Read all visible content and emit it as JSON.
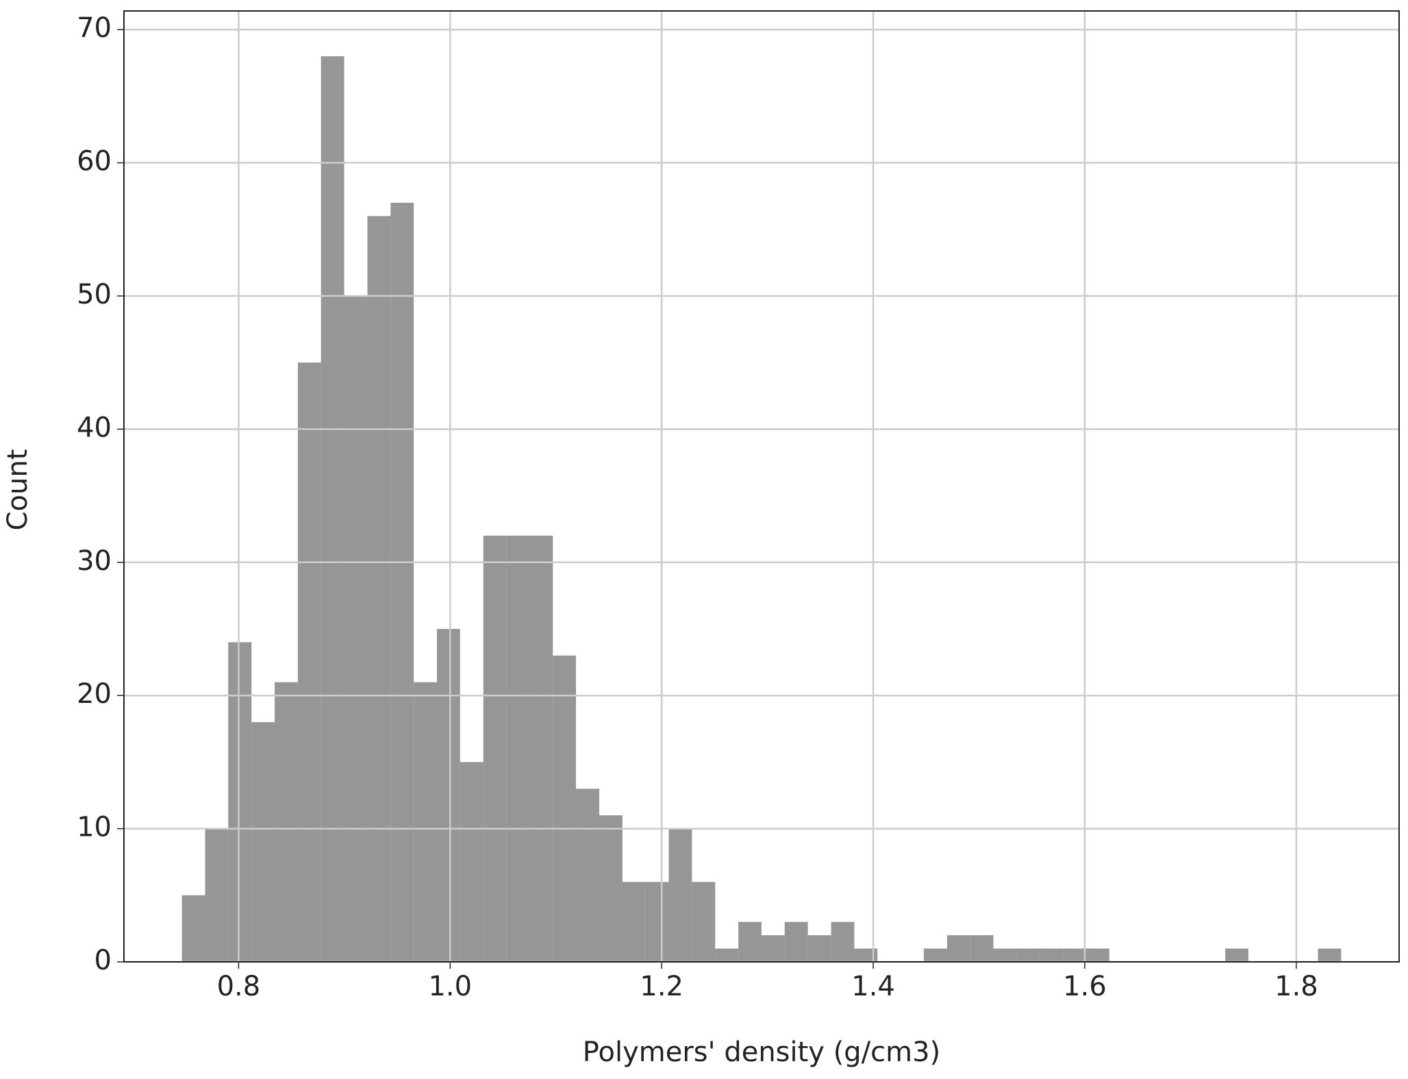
{
  "chart_data": {
    "type": "histogram",
    "x_label": "Polymers' density (g/cm3)",
    "y_label": "Count",
    "color": "#969696",
    "grid": true,
    "bins": [
      0.7464,
      0.7683,
      0.7902,
      0.8122,
      0.8341,
      0.856,
      0.8779,
      0.8998,
      0.9218,
      0.9437,
      0.9656,
      0.9875,
      1.0094,
      1.0314,
      1.0533,
      1.0752,
      1.0971,
      1.119,
      1.141,
      1.1629,
      1.1848,
      1.2067,
      1.2286,
      1.2506,
      1.2725,
      1.2944,
      1.3163,
      1.3382,
      1.3602,
      1.3821,
      1.404,
      1.4259,
      1.4478,
      1.4698,
      1.4917,
      1.5136,
      1.5355,
      1.5574,
      1.5794,
      1.6013,
      1.6232,
      1.6451,
      1.667,
      1.689,
      1.7109,
      1.7328,
      1.7547,
      1.7766,
      1.7986,
      1.8205,
      1.8424
    ],
    "values": [
      5,
      10,
      24,
      18,
      21,
      45,
      68,
      50,
      56,
      57,
      21,
      25,
      15,
      32,
      32,
      32,
      23,
      13,
      11,
      6,
      6,
      10,
      6,
      1,
      3,
      2,
      3,
      2,
      3,
      1,
      0,
      0,
      1,
      2,
      2,
      1,
      1,
      1,
      1,
      1,
      0,
      0,
      0,
      0,
      0,
      1,
      0,
      0,
      0,
      1
    ],
    "xlim": [
      0.6916,
      1.8972
    ],
    "ylim": [
      0,
      71.4
    ],
    "xticks": [
      {
        "value": 0.8,
        "label": "0.8"
      },
      {
        "value": 1.0,
        "label": "1.0"
      },
      {
        "value": 1.2,
        "label": "1.2"
      },
      {
        "value": 1.4,
        "label": "1.4"
      },
      {
        "value": 1.6,
        "label": "1.6"
      },
      {
        "value": 1.8,
        "label": "1.8"
      }
    ],
    "yticks": [
      0,
      10,
      20,
      30,
      40,
      50,
      60,
      70
    ]
  }
}
